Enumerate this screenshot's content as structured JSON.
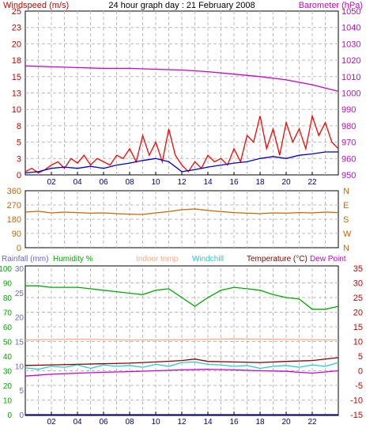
{
  "chart_data": [
    {
      "type": "line",
      "title": "24 hour graph day : 21 February 2008",
      "left_axis_label": "Windspeed (m/s)",
      "right_axis_label": "Barometer (hPa)",
      "left_ticks": [
        "0",
        "3",
        "5",
        "8",
        "10",
        "13",
        "15",
        "18",
        "20",
        "23",
        "25"
      ],
      "left_ylim": [
        0,
        25
      ],
      "right_ticks": [
        "950",
        "960",
        "970",
        "980",
        "990",
        "1000",
        "1010",
        "1020",
        "1030",
        "1040",
        "1050"
      ],
      "right_ylim": [
        950,
        1050
      ],
      "x_ticks": [
        "02",
        "04",
        "06",
        "08",
        "10",
        "12",
        "14",
        "16",
        "18",
        "20",
        "22",
        ""
      ],
      "x_hours": [
        0,
        24
      ],
      "grid": true,
      "series": [
        {
          "color": "#cc00cc",
          "axis": "right",
          "x": [
            0,
            2,
            4,
            6,
            8,
            10,
            12,
            14,
            16,
            18,
            20,
            22,
            24
          ],
          "y": [
            1016.5,
            1016,
            1015.5,
            1015,
            1015,
            1014.5,
            1014,
            1013,
            1011.5,
            1010,
            1008,
            1005,
            1001
          ]
        },
        {
          "color": "#ff0000",
          "axis": "left",
          "x": [
            0,
            0.5,
            1,
            1.5,
            2,
            2.5,
            3,
            3.5,
            4,
            4.5,
            5,
            5.5,
            6,
            6.5,
            7,
            7.5,
            8,
            8.5,
            9,
            9.5,
            10,
            10.5,
            11,
            11.5,
            12,
            12.5,
            13,
            13.5,
            14,
            14.5,
            15,
            15.5,
            16,
            16.5,
            17,
            17.5,
            18,
            18.5,
            19,
            19.5,
            20,
            20.5,
            21,
            21.5,
            22,
            22.5,
            23,
            23.5,
            24
          ],
          "y": [
            0.5,
            1,
            0.3,
            0.8,
            1.5,
            2,
            1,
            2.5,
            1.8,
            3,
            1.5,
            2.5,
            2,
            1.5,
            3,
            2.5,
            4,
            2,
            6,
            3,
            5,
            2,
            7,
            3,
            1.5,
            0.5,
            2,
            1,
            3,
            2,
            2.5,
            1.5,
            4,
            2,
            6,
            5,
            9,
            4,
            7,
            3,
            8,
            5,
            7,
            4,
            9,
            6,
            8,
            5,
            4
          ]
        },
        {
          "color": "#0000cc",
          "axis": "left",
          "x": [
            0,
            1,
            2,
            3,
            4,
            5,
            6,
            7,
            8,
            9,
            10,
            11,
            12,
            13,
            14,
            15,
            16,
            17,
            18,
            19,
            20,
            21,
            22,
            23,
            24
          ],
          "y": [
            0.3,
            0.5,
            1,
            1.2,
            1,
            1.3,
            1,
            1.5,
            1.8,
            2.2,
            2.5,
            2,
            0.5,
            0.8,
            1.2,
            1.5,
            1.8,
            2,
            2.5,
            2.8,
            2.5,
            3,
            3.2,
            3.5,
            3.5
          ]
        }
      ]
    },
    {
      "type": "line",
      "left_ticks": [
        "0",
        "90",
        "180",
        "270",
        "360"
      ],
      "left_ylim": [
        0,
        360
      ],
      "right_ticks": [
        "N",
        "W",
        "S",
        "E",
        "N"
      ],
      "x_hours": [
        0,
        24
      ],
      "grid": true,
      "series": [
        {
          "color": "#cc6600",
          "axis": "left",
          "x": [
            0,
            1,
            2,
            3,
            4,
            5,
            6,
            7,
            8,
            9,
            10,
            11,
            12,
            13,
            14,
            15,
            16,
            17,
            18,
            19,
            20,
            21,
            22,
            23,
            24
          ],
          "y": [
            225,
            230,
            220,
            225,
            222,
            218,
            220,
            215,
            212,
            210,
            220,
            228,
            240,
            245,
            235,
            228,
            222,
            218,
            215,
            220,
            218,
            222,
            220,
            225,
            222
          ]
        }
      ]
    },
    {
      "type": "line",
      "legend": [
        "Rainfall (mm)",
        "Humidity %",
        "Indoor temp",
        "Windchill",
        "Temperature (°C)",
        "Dew Point"
      ],
      "legend_colors": [
        "#6666cc",
        "#00aa00",
        "#ffaa88",
        "#22cccc",
        "#880000",
        "#cc00cc"
      ],
      "rain_ticks": [
        "0",
        "5",
        "10",
        "15",
        "20",
        "25",
        "30"
      ],
      "rain_ylim": [
        0,
        30
      ],
      "humidity_ticks": [
        "0",
        "10",
        "20",
        "30",
        "40",
        "50",
        "60",
        "70",
        "80",
        "90",
        "100"
      ],
      "humidity_ylim": [
        0,
        100
      ],
      "temp_ticks": [
        "-15",
        "-10",
        "-5",
        "0",
        "5",
        "10",
        "15",
        "20",
        "25",
        "30",
        "35"
      ],
      "temp_ylim": [
        -15,
        35
      ],
      "x_ticks": [
        "02",
        "04",
        "06",
        "08",
        "10",
        "12",
        "14",
        "16",
        "18",
        "20",
        "22",
        ""
      ],
      "x_hours": [
        0,
        24
      ],
      "grid": true,
      "series": [
        {
          "color": "#00aa00",
          "axis": "humidity",
          "x": [
            0,
            1,
            2,
            3,
            4,
            5,
            6,
            7,
            8,
            9,
            10,
            11,
            12,
            13,
            14,
            15,
            16,
            17,
            18,
            19,
            20,
            21,
            22,
            23,
            24
          ],
          "y": [
            88,
            88,
            87,
            87,
            87,
            86,
            85,
            84,
            83,
            82,
            85,
            86,
            80,
            74,
            80,
            85,
            87,
            86,
            85,
            82,
            80,
            79,
            72,
            72,
            74
          ]
        },
        {
          "color": "#ffaa88",
          "axis": "temp",
          "x": [
            0,
            4,
            8,
            12,
            16,
            20,
            24
          ],
          "y": [
            10.5,
            10.8,
            10.5,
            10.6,
            10.9,
            10.7,
            10.5
          ]
        },
        {
          "color": "#880000",
          "axis": "temp",
          "x": [
            0,
            2,
            4,
            6,
            8,
            10,
            12,
            13,
            14,
            16,
            18,
            20,
            22,
            24
          ],
          "y": [
            1.8,
            2,
            2.2,
            2.4,
            2.6,
            3,
            3.5,
            4,
            3.2,
            3,
            2.8,
            3.2,
            3.5,
            4.5
          ]
        },
        {
          "color": "#22cccc",
          "axis": "temp",
          "x": [
            0,
            1,
            2,
            3,
            4,
            5,
            6,
            7,
            8,
            9,
            10,
            11,
            12,
            13,
            14,
            15,
            16,
            17,
            18,
            19,
            20,
            21,
            22,
            23,
            24
          ],
          "y": [
            1,
            0.5,
            1.5,
            1.2,
            2,
            0.8,
            2,
            1.5,
            1.8,
            1.2,
            2.2,
            1.5,
            2.8,
            3,
            2.2,
            2,
            1.5,
            1.8,
            0.8,
            1.5,
            1.8,
            1.2,
            2,
            1.5,
            2.8
          ]
        },
        {
          "color": "#cc00cc",
          "axis": "temp",
          "x": [
            0,
            2,
            4,
            6,
            8,
            10,
            12,
            14,
            16,
            18,
            20,
            22,
            24
          ],
          "y": [
            -1.8,
            -1.2,
            -0.8,
            -0.5,
            -0.3,
            0,
            0.3,
            0.5,
            0.3,
            0,
            -0.2,
            -0.8,
            0
          ]
        },
        {
          "color": "#0000cc",
          "axis": "rain",
          "x": [
            0,
            24
          ],
          "y": [
            0,
            0
          ]
        }
      ]
    }
  ]
}
